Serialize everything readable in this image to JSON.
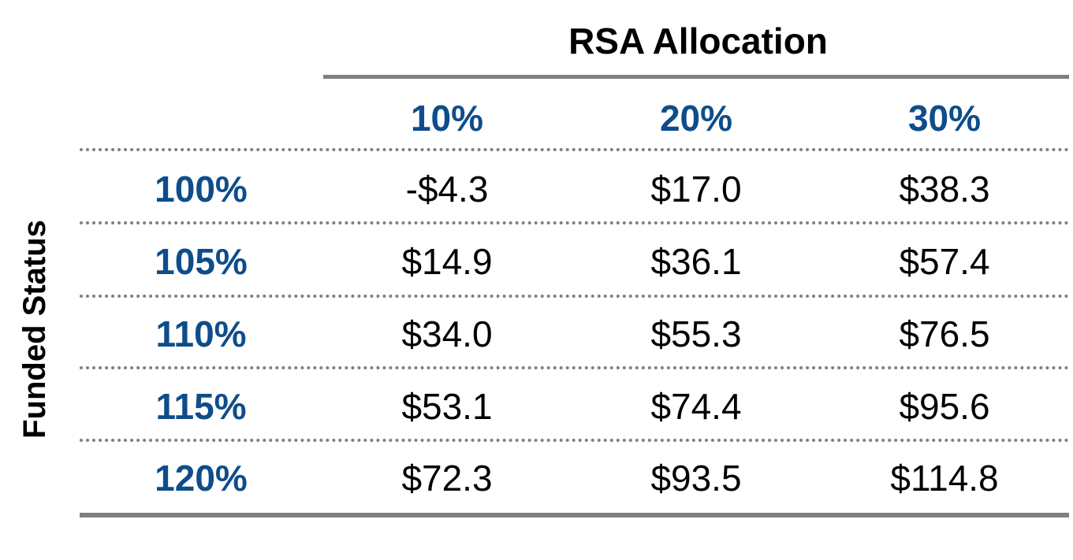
{
  "chart_data": {
    "type": "table",
    "column_header_title": "RSA Allocation",
    "row_header_title": "Funded Status",
    "columns": [
      "10%",
      "20%",
      "30%"
    ],
    "rows": [
      {
        "label": "100%",
        "values": [
          "-$4.3",
          "$17.0",
          "$38.3"
        ]
      },
      {
        "label": "105%",
        "values": [
          "$14.9",
          "$36.1",
          "$57.4"
        ]
      },
      {
        "label": "110%",
        "values": [
          "$34.0",
          "$55.3",
          "$76.5"
        ]
      },
      {
        "label": "115%",
        "values": [
          "$53.1",
          "$74.4",
          "$95.6"
        ]
      },
      {
        "label": "120%",
        "values": [
          "$72.3",
          "$93.5",
          "$114.8"
        ]
      }
    ]
  },
  "colors": {
    "header_text": "#0e4d8a",
    "cell_text": "#000000",
    "rule": "#7f7f7f"
  }
}
